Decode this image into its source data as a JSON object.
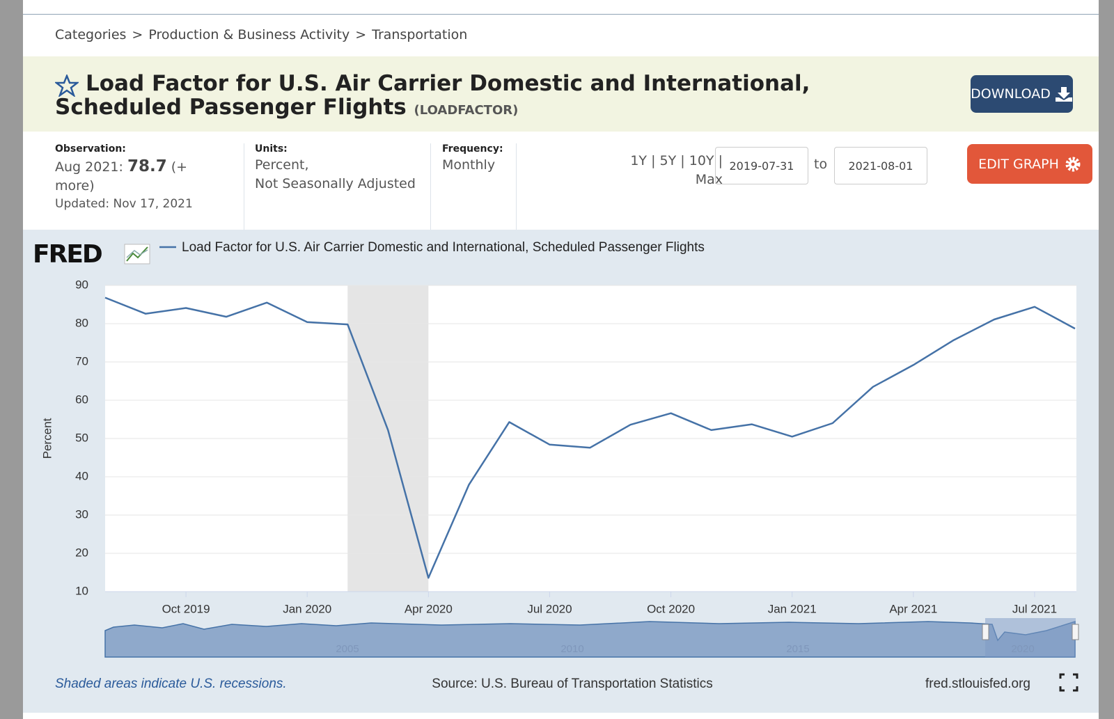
{
  "breadcrumb": {
    "items": [
      "Categories",
      "Production & Business Activity",
      "Transportation"
    ],
    "separator": ">"
  },
  "header": {
    "title": "Load Factor for U.S. Air Carrier Domestic and International, Scheduled Passenger Flights",
    "series_id": "(LOADFACTOR)",
    "download": "DOWNLOAD"
  },
  "meta": {
    "observation_label": "Observation:",
    "observation_date": "Aug 2021:",
    "observation_value": 78.7,
    "more": "(+ more)",
    "updated": "Updated: Nov 17, 2021",
    "units_label": "Units:",
    "units_1": "Percent,",
    "units_2": "Not Seasonally Adjusted",
    "frequency_label": "Frequency:",
    "frequency": "Monthly",
    "ranges": [
      "1Y",
      "5Y",
      "10Y",
      "Max"
    ],
    "range_sep": "|",
    "start": "2019-07-31",
    "to": "to",
    "end": "2021-08-01",
    "edit": "EDIT GRAPH"
  },
  "chart_data": {
    "type": "line",
    "logo": "FRED",
    "ylabel": "Percent",
    "categories": [
      null,
      null,
      "Oct 2019",
      null,
      null,
      "Jan 2020",
      null,
      null,
      "Apr 2020",
      null,
      null,
      "Jul 2020",
      null,
      null,
      "Oct 2020",
      null,
      null,
      "Jan 2021",
      null,
      null,
      "Apr 2021",
      null,
      null,
      "Jul 2021",
      null
    ],
    "series": [
      {
        "name": "Load Factor for U.S. Air Carrier Domestic and International, Scheduled Passenger Flights",
        "color": "#4572a7",
        "values": [
          86.8,
          82.6,
          84.1,
          81.8,
          85.5,
          80.4,
          79.8,
          52.2,
          13.6,
          37.9,
          54.3,
          48.4,
          47.6,
          53.6,
          56.6,
          52.2,
          53.7,
          50.5,
          54.0,
          63.5,
          69.2,
          75.7,
          81.1,
          84.4,
          78.7
        ]
      }
    ],
    "ylim": [
      10,
      90
    ],
    "yticks": [
      10,
      20,
      30,
      40,
      50,
      60,
      70,
      80,
      90
    ],
    "grid": true,
    "recession": {
      "from": 6,
      "to": 8
    },
    "navigator_labels": [
      "2005",
      "2010",
      "2015",
      "2020"
    ],
    "note": "Shaded areas indicate U.S. recessions.",
    "source": "Source: U.S. Bureau of Transportation Statistics",
    "site": "fred.stlouisfed.org"
  }
}
